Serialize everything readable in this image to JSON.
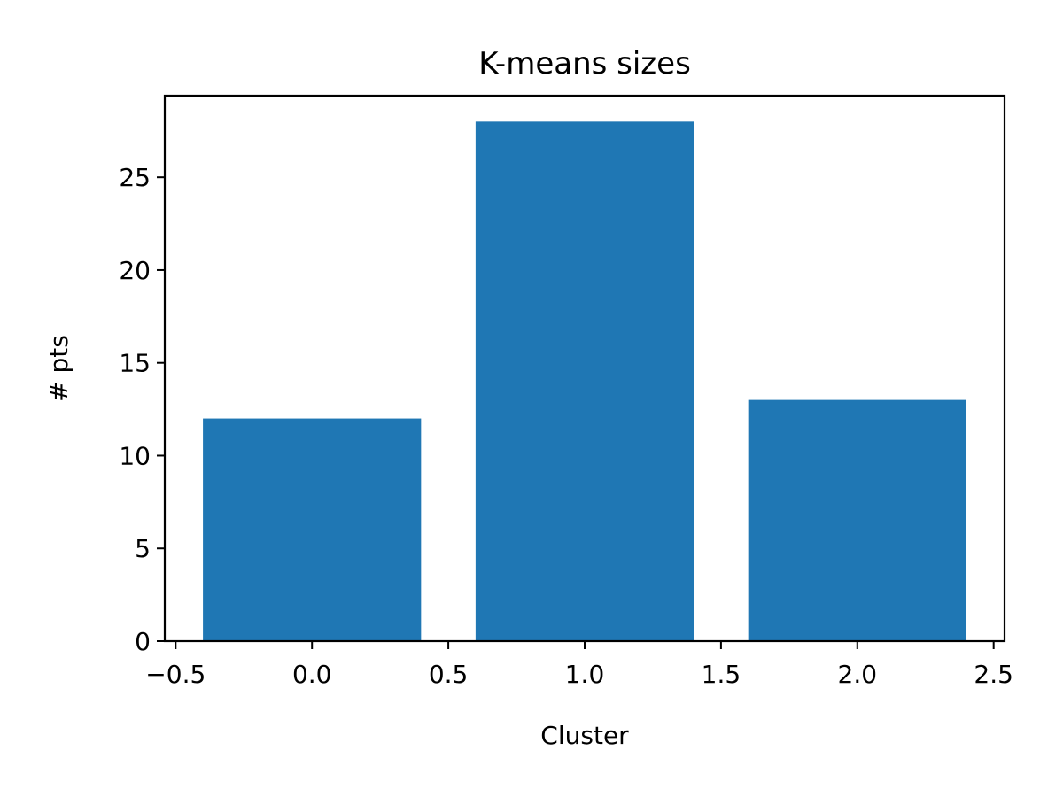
{
  "chart_data": {
    "type": "bar",
    "title": "K-means sizes",
    "xlabel": "Cluster",
    "ylabel": "# pts",
    "x": [
      0,
      1,
      2
    ],
    "values": [
      12,
      28,
      13
    ],
    "bar_width": 0.8,
    "xlim": [
      -0.54,
      2.54
    ],
    "ylim": [
      0,
      29.4
    ],
    "xticks": [
      -0.5,
      0.0,
      0.5,
      1.0,
      1.5,
      2.0,
      2.5
    ],
    "xtick_labels": [
      "−0.5",
      "0.0",
      "0.5",
      "1.0",
      "1.5",
      "2.0",
      "2.5"
    ],
    "yticks": [
      0,
      5,
      10,
      15,
      20,
      25
    ],
    "ytick_labels": [
      "0",
      "5",
      "10",
      "15",
      "20",
      "25"
    ],
    "bar_color": "#1f77b4",
    "grid": false,
    "legend": "none"
  }
}
